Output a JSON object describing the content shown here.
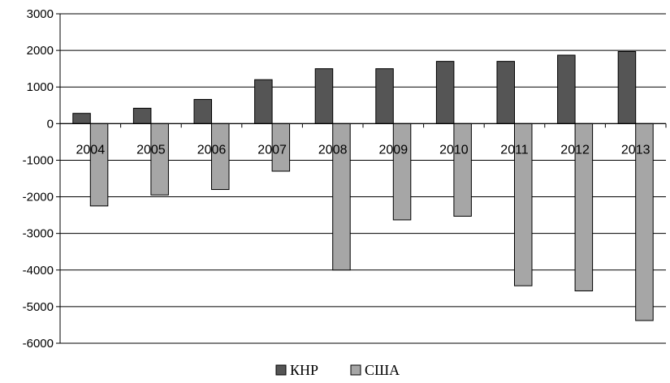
{
  "chart_data": {
    "type": "bar",
    "categories": [
      "2004",
      "2005",
      "2006",
      "2007",
      "2008",
      "2009",
      "2010",
      "2011",
      "2012",
      "2013"
    ],
    "series": [
      {
        "name": "КНР",
        "color": "#555555",
        "values": [
          280,
          420,
          660,
          1200,
          1500,
          1500,
          1700,
          1700,
          1870,
          1970
        ]
      },
      {
        "name": "США",
        "color": "#a6a6a6",
        "values": [
          -2250,
          -1950,
          -1800,
          -1300,
          -4000,
          -2630,
          -2530,
          -4430,
          -4570,
          -5380
        ]
      }
    ],
    "ylim": [
      -6000,
      3000
    ],
    "yticks": [
      3000,
      2000,
      1000,
      0,
      -1000,
      -2000,
      -3000,
      -4000,
      -5000,
      -6000
    ],
    "grid": true,
    "legend_position": "bottom",
    "title": "",
    "xlabel": "",
    "ylabel": ""
  }
}
